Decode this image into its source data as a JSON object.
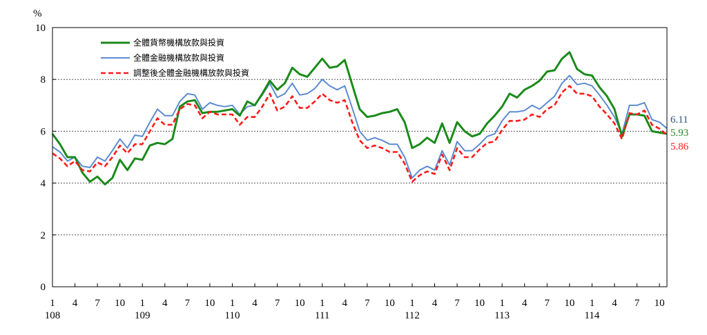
{
  "chart_data": {
    "type": "line",
    "y_unit": "%",
    "ylim": [
      0,
      10
    ],
    "y_ticks": [
      0,
      2,
      4,
      6,
      8,
      10
    ],
    "grid": "horizontal-dotted",
    "legend_position": "top-left",
    "x_month_ticks": [
      "1",
      "4",
      "7",
      "10",
      "1",
      "4",
      "7",
      "10",
      "1",
      "4",
      "7",
      "10",
      "1",
      "4",
      "7",
      "10",
      "1",
      "4",
      "7",
      "10",
      "1",
      "4",
      "7",
      "10",
      "1",
      "4",
      "7",
      "10"
    ],
    "x_year_labels": [
      "108",
      "109",
      "110",
      "111",
      "112",
      "113",
      "114"
    ],
    "series": [
      {
        "name": "全體貨幣機構放款與投資",
        "color": "#1a8a1a",
        "dash": "solid",
        "end_label": "5.93",
        "values": [
          5.9,
          5.5,
          5.0,
          5.0,
          4.4,
          4.05,
          4.25,
          3.95,
          4.2,
          4.9,
          4.5,
          4.95,
          4.9,
          5.45,
          5.55,
          5.5,
          5.7,
          6.95,
          7.15,
          7.2,
          6.7,
          6.75,
          6.75,
          6.8,
          6.85,
          6.6,
          7.15,
          7.0,
          7.45,
          7.95,
          7.6,
          7.85,
          8.45,
          8.2,
          8.1,
          8.45,
          8.8,
          8.45,
          8.5,
          8.75,
          7.8,
          6.85,
          6.55,
          6.6,
          6.7,
          6.75,
          6.85,
          6.35,
          5.35,
          5.5,
          5.75,
          5.55,
          6.3,
          5.55,
          6.35,
          6.0,
          5.8,
          5.9,
          6.3,
          6.6,
          6.95,
          7.45,
          7.3,
          7.6,
          7.75,
          7.95,
          8.3,
          8.35,
          8.8,
          9.05,
          8.4,
          8.2,
          8.15,
          7.7,
          7.35,
          6.85,
          5.8,
          6.65,
          6.65,
          6.6,
          6.0,
          5.95,
          5.9
        ]
      },
      {
        "name": "全體金融機構放款與投資",
        "color": "#5b8bd0",
        "dash": "solid",
        "end_label": "6.11",
        "values": [
          5.4,
          5.2,
          4.85,
          5.0,
          4.65,
          4.6,
          5.0,
          4.85,
          5.25,
          5.7,
          5.35,
          5.85,
          5.8,
          6.35,
          6.85,
          6.6,
          6.6,
          7.15,
          7.45,
          7.4,
          6.85,
          7.1,
          7.0,
          6.95,
          7.0,
          6.65,
          6.95,
          7.0,
          7.4,
          7.85,
          7.3,
          7.45,
          7.85,
          7.4,
          7.45,
          7.65,
          8.0,
          7.75,
          7.6,
          7.75,
          6.9,
          6.0,
          5.65,
          5.75,
          5.65,
          5.5,
          5.5,
          5.0,
          4.2,
          4.5,
          4.65,
          4.5,
          5.25,
          4.7,
          5.6,
          5.25,
          5.25,
          5.5,
          5.8,
          5.9,
          6.4,
          6.75,
          6.75,
          6.8,
          7.0,
          6.85,
          7.1,
          7.35,
          7.85,
          8.15,
          7.8,
          7.85,
          7.75,
          7.4,
          7.0,
          6.55,
          5.9,
          7.0,
          7.0,
          7.1,
          6.45,
          6.35,
          6.11
        ]
      },
      {
        "name": "調整後全體金融機構放款與投資",
        "color": "#ff1a1a",
        "dash": "dashed",
        "end_label": "5.86",
        "values": [
          5.15,
          4.95,
          4.65,
          4.85,
          4.5,
          4.45,
          4.8,
          4.65,
          5.0,
          5.45,
          5.15,
          5.5,
          5.5,
          6.0,
          6.5,
          6.25,
          6.25,
          6.85,
          7.05,
          7.0,
          6.5,
          6.75,
          6.65,
          6.65,
          6.65,
          6.25,
          6.55,
          6.55,
          6.95,
          7.45,
          6.8,
          6.95,
          7.35,
          6.9,
          6.9,
          7.15,
          7.45,
          7.2,
          7.1,
          7.2,
          6.35,
          5.65,
          5.35,
          5.45,
          5.35,
          5.2,
          5.2,
          4.75,
          4.05,
          4.3,
          4.45,
          4.35,
          5.1,
          4.5,
          5.35,
          5.0,
          5.0,
          5.3,
          5.55,
          5.6,
          6.05,
          6.4,
          6.4,
          6.45,
          6.65,
          6.55,
          6.85,
          7.0,
          7.5,
          7.75,
          7.45,
          7.45,
          7.35,
          6.95,
          6.65,
          6.3,
          5.7,
          6.7,
          6.65,
          6.8,
          6.25,
          6.1,
          5.86
        ]
      }
    ]
  }
}
